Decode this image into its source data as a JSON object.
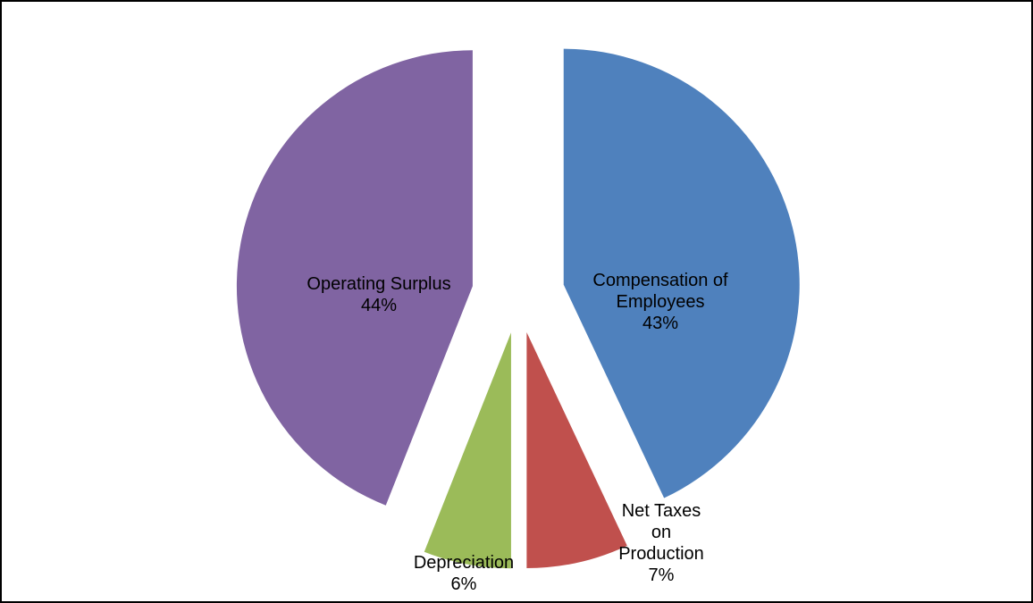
{
  "chart_data": {
    "type": "pie",
    "title": "",
    "exploded": true,
    "slices": [
      {
        "label": [
          "Compensation of",
          "Employees"
        ],
        "percent_label": "43%",
        "value": 43,
        "color": "#4F81BD"
      },
      {
        "label": [
          "Net Taxes",
          "on",
          "Production"
        ],
        "percent_label": "7%",
        "value": 7,
        "color": "#C0504D"
      },
      {
        "label": [
          "Depreciation"
        ],
        "percent_label": "6%",
        "value": 6,
        "color": "#9BBB59"
      },
      {
        "label": [
          "Operating Surplus"
        ],
        "percent_label": "44%",
        "value": 44,
        "color": "#8064A2"
      }
    ]
  }
}
